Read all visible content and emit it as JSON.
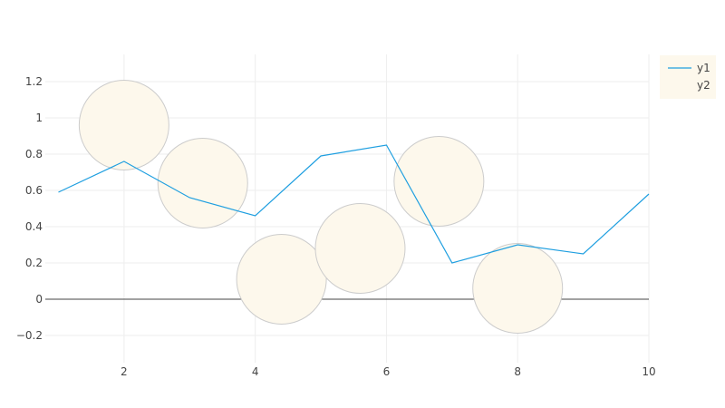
{
  "chart_data": {
    "type": "line",
    "xlim": [
      0.8,
      10
    ],
    "ylim": [
      -0.35,
      1.35
    ],
    "x_ticks": [
      2,
      4,
      6,
      8,
      10
    ],
    "y_ticks": [
      -0.2,
      0,
      0.2,
      0.4,
      0.6,
      0.8,
      1,
      1.2
    ],
    "grid": true,
    "zero_line": true,
    "legend_position": "top-right",
    "series": [
      {
        "name": "y1",
        "type": "line",
        "color": "#1f9fe0",
        "x": [
          1,
          2,
          3,
          4,
          5,
          6,
          7,
          8,
          9,
          10
        ],
        "y": [
          0.59,
          0.76,
          0.56,
          0.46,
          0.79,
          0.85,
          0.2,
          0.3,
          0.25,
          0.58
        ]
      },
      {
        "name": "y2",
        "type": "scatter",
        "marker": "bubble",
        "fill_color": "#fdf8ec",
        "stroke_color": "#cccccc",
        "x": [
          2,
          3.2,
          4.4,
          5.6,
          6.8,
          8
        ],
        "y": [
          0.96,
          0.64,
          0.11,
          0.28,
          0.65,
          0.06
        ]
      }
    ]
  }
}
